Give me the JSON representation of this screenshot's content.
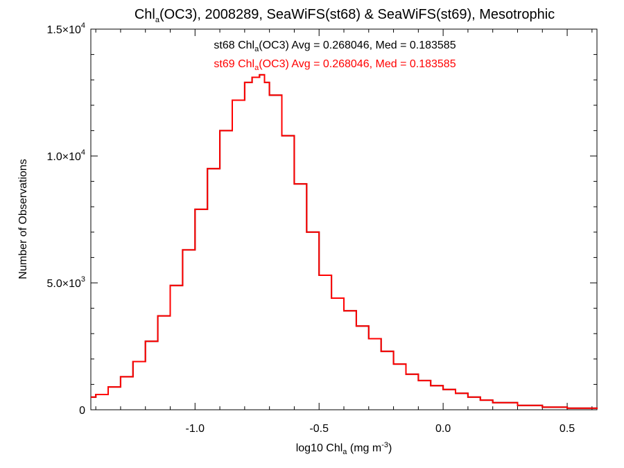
{
  "chart_data": {
    "type": "line",
    "step": true,
    "title": {
      "pre": "Chl",
      "sub": "a",
      "post": "(OC3), 2008289, SeaWiFS(st68) & SeaWiFS(st69), Mesotrophic"
    },
    "xlabel": {
      "pre": "log10 Chl",
      "sub": "a",
      "mid": " (mg m",
      "sup": "-3",
      "post": ")"
    },
    "ylabel": "Number of Observations",
    "xlim": [
      -1.42,
      0.62
    ],
    "ylim": [
      0,
      15000
    ],
    "x_ticks": [
      {
        "value": -1.0,
        "label": "-1.0"
      },
      {
        "value": -0.5,
        "label": "-0.5"
      },
      {
        "value": 0.0,
        "label": "0.0"
      },
      {
        "value": 0.5,
        "label": "0.5"
      }
    ],
    "y_ticks": [
      {
        "value": 0,
        "label": "0"
      },
      {
        "value": 5000,
        "mantissa": "5.0",
        "exp": "3"
      },
      {
        "value": 10000,
        "mantissa": "1.0",
        "exp": "4"
      },
      {
        "value": 15000,
        "mantissa": "1.5",
        "exp": "4"
      }
    ],
    "legend": [
      {
        "station": "st68",
        "pre": "st68 Chl",
        "sub": "a",
        "post": "(OC3) Avg = 0.268046, Med = 0.183585",
        "color": "#000000"
      },
      {
        "station": "st69",
        "pre": "st69 Chl",
        "sub": "a",
        "post": "(OC3) Avg = 0.268046, Med = 0.183585",
        "color": "#ff0000"
      }
    ],
    "series": [
      {
        "name": "st68",
        "color": "#000000",
        "x": [
          -1.42,
          -1.4,
          -1.35,
          -1.3,
          -1.25,
          -1.2,
          -1.15,
          -1.1,
          -1.05,
          -1.0,
          -0.95,
          -0.9,
          -0.85,
          -0.8,
          -0.77,
          -0.74,
          -0.72,
          -0.7,
          -0.65,
          -0.6,
          -0.55,
          -0.5,
          -0.45,
          -0.4,
          -0.35,
          -0.3,
          -0.25,
          -0.2,
          -0.15,
          -0.1,
          -0.05,
          0.0,
          0.05,
          0.1,
          0.15,
          0.2,
          0.3,
          0.4,
          0.5,
          0.62
        ],
        "y": [
          500,
          600,
          900,
          1300,
          1900,
          2700,
          3700,
          4900,
          6300,
          7900,
          9500,
          11000,
          12200,
          12900,
          13100,
          13200,
          12900,
          12400,
          10800,
          8900,
          7000,
          5300,
          4400,
          3900,
          3300,
          2800,
          2300,
          1800,
          1400,
          1150,
          950,
          800,
          650,
          500,
          380,
          280,
          170,
          100,
          60,
          30
        ]
      },
      {
        "name": "st69",
        "color": "#ff0000",
        "x": [
          -1.42,
          -1.4,
          -1.35,
          -1.3,
          -1.25,
          -1.2,
          -1.15,
          -1.1,
          -1.05,
          -1.0,
          -0.95,
          -0.9,
          -0.85,
          -0.8,
          -0.77,
          -0.74,
          -0.72,
          -0.7,
          -0.65,
          -0.6,
          -0.55,
          -0.5,
          -0.45,
          -0.4,
          -0.35,
          -0.3,
          -0.25,
          -0.2,
          -0.15,
          -0.1,
          -0.05,
          0.0,
          0.05,
          0.1,
          0.15,
          0.2,
          0.3,
          0.4,
          0.5,
          0.62
        ],
        "y": [
          500,
          600,
          900,
          1300,
          1900,
          2700,
          3700,
          4900,
          6300,
          7900,
          9500,
          11000,
          12200,
          12900,
          13100,
          13200,
          12900,
          12400,
          10800,
          8900,
          7000,
          5300,
          4400,
          3900,
          3300,
          2800,
          2300,
          1800,
          1400,
          1150,
          950,
          800,
          650,
          500,
          380,
          280,
          170,
          100,
          60,
          30
        ]
      }
    ]
  }
}
